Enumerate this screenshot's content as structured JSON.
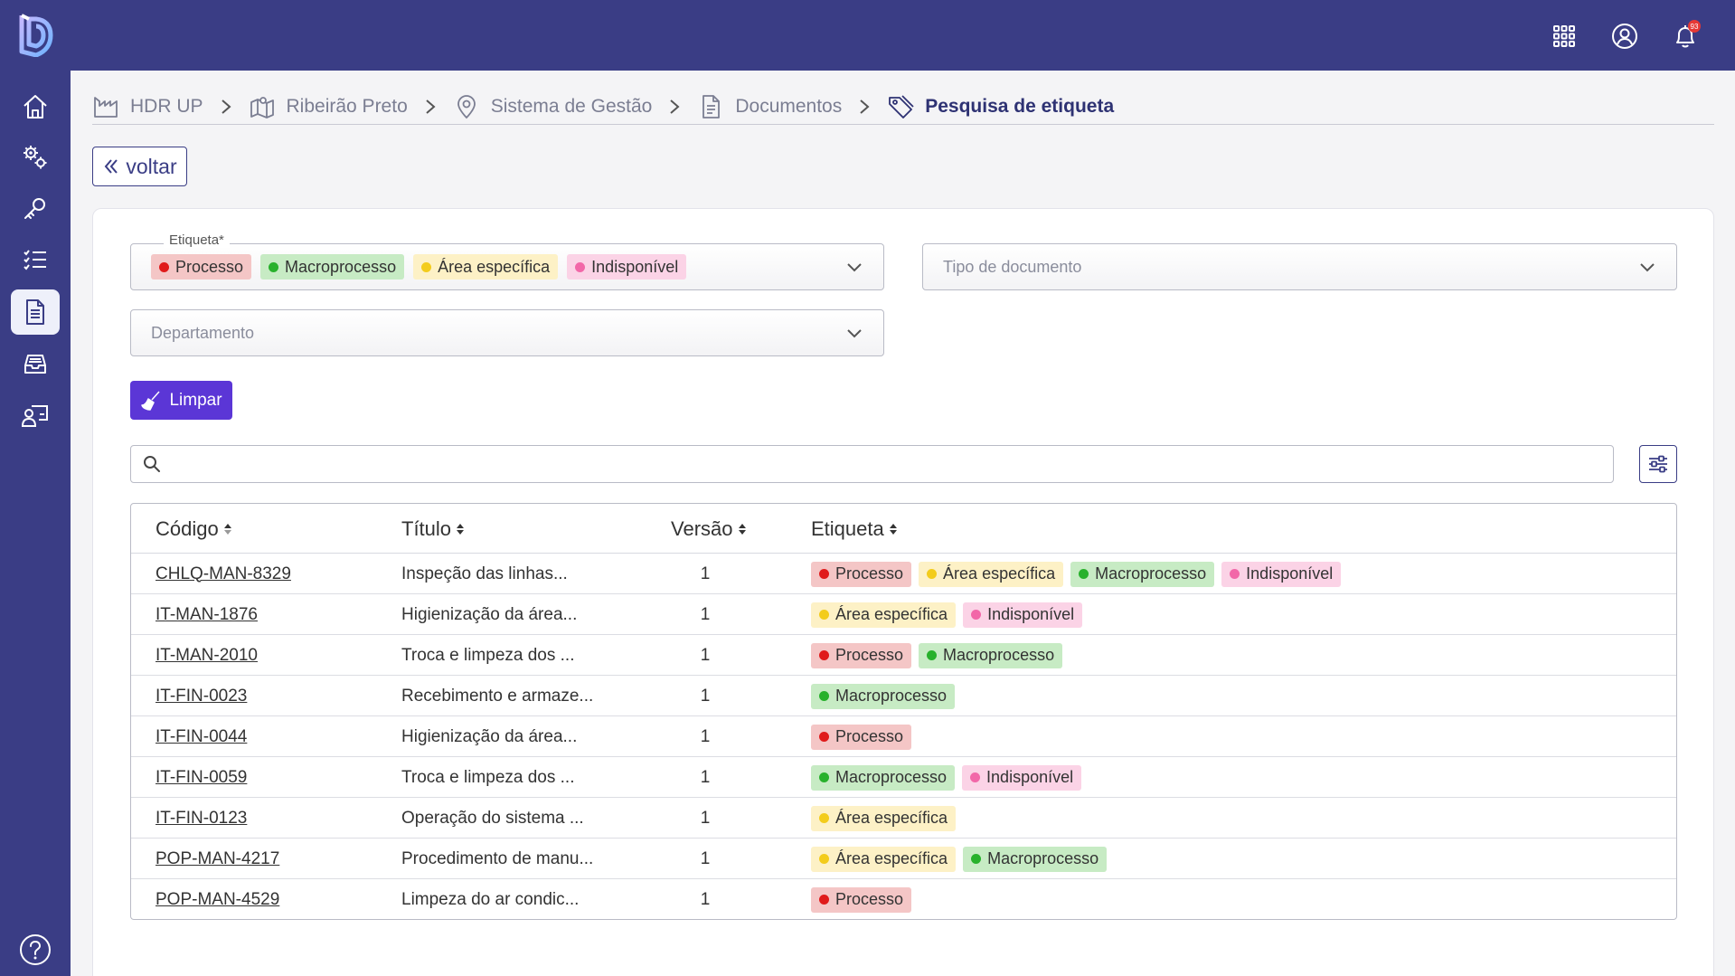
{
  "app": {
    "name": "HDR UP",
    "notification_count": "93"
  },
  "sidebar": {
    "items": [
      {
        "name": "home",
        "icon": "home-icon"
      },
      {
        "name": "settings",
        "icon": "gears-icon"
      },
      {
        "name": "access",
        "icon": "key-icon"
      },
      {
        "name": "tasks",
        "icon": "checklist-icon"
      },
      {
        "name": "documents",
        "icon": "document-icon",
        "active": true
      },
      {
        "name": "inbox",
        "icon": "inbox-icon"
      },
      {
        "name": "users",
        "icon": "user-board-icon"
      }
    ],
    "help_icon": "help-icon"
  },
  "header": {
    "icons": [
      "apps-grid-icon",
      "user-circle-icon",
      "bell-icon"
    ]
  },
  "breadcrumb": {
    "items": [
      {
        "label": "HDR UP",
        "icon": "factory-icon"
      },
      {
        "label": "Ribeirão Preto",
        "icon": "map-icon"
      },
      {
        "label": "Sistema de Gestão",
        "icon": "pin-icon"
      },
      {
        "label": "Documentos",
        "icon": "file-icon"
      },
      {
        "label": "Pesquisa de etiqueta",
        "icon": "tag-icon",
        "current": true
      }
    ]
  },
  "back_button": {
    "label": "voltar"
  },
  "filters": {
    "etiqueta": {
      "label": "Etiqueta*",
      "selected": [
        "Processo",
        "Macroprocesso",
        "Área específica",
        "Indisponível"
      ]
    },
    "tipo_documento": {
      "placeholder": "Tipo de documento"
    },
    "departamento": {
      "placeholder": "Departamento"
    },
    "clear_label": "Limpar"
  },
  "search": {
    "value": ""
  },
  "tag_colors": {
    "Processo": {
      "bg": "#f4c6c6",
      "dot": "#e01b1b"
    },
    "Macroprocesso": {
      "bg": "#c7ebc4",
      "dot": "#28b12c"
    },
    "Área específica": {
      "bg": "#fdf1c6",
      "dot": "#f3cc1c"
    },
    "Indisponível": {
      "bg": "#fbd3e6",
      "dot": "#f267a8"
    }
  },
  "table": {
    "columns": [
      "Código",
      "Título",
      "Versão",
      "Etiqueta"
    ],
    "rows": [
      {
        "codigo": "CHLQ-MAN-8329",
        "titulo": "Inspeção das linhas...",
        "versao": "1",
        "tags": [
          "Processo",
          "Área específica",
          "Macroprocesso",
          "Indisponível"
        ]
      },
      {
        "codigo": "IT-MAN-1876",
        "titulo": "Higienização da área...",
        "versao": "1",
        "tags": [
          "Área específica",
          "Indisponível"
        ]
      },
      {
        "codigo": "IT-MAN-2010",
        "titulo": "Troca e limpeza dos ...",
        "versao": "1",
        "tags": [
          "Processo",
          "Macroprocesso"
        ]
      },
      {
        "codigo": "IT-FIN-0023",
        "titulo": "Recebimento e armaze...",
        "versao": "1",
        "tags": [
          "Macroprocesso"
        ]
      },
      {
        "codigo": "IT-FIN-0044",
        "titulo": "Higienização da área...",
        "versao": "1",
        "tags": [
          "Processo"
        ]
      },
      {
        "codigo": "IT-FIN-0059",
        "titulo": "Troca e limpeza dos ...",
        "versao": "1",
        "tags": [
          "Macroprocesso",
          "Indisponível"
        ]
      },
      {
        "codigo": "IT-FIN-0123",
        "titulo": "Operação do sistema ...",
        "versao": "1",
        "tags": [
          "Área específica"
        ]
      },
      {
        "codigo": "POP-MAN-4217",
        "titulo": "Procedimento de manu...",
        "versao": "1",
        "tags": [
          "Área específica",
          "Macroprocesso"
        ]
      },
      {
        "codigo": "POP-MAN-4529",
        "titulo": "Limpeza do ar condic...",
        "versao": "1",
        "tags": [
          "Processo"
        ]
      }
    ]
  }
}
